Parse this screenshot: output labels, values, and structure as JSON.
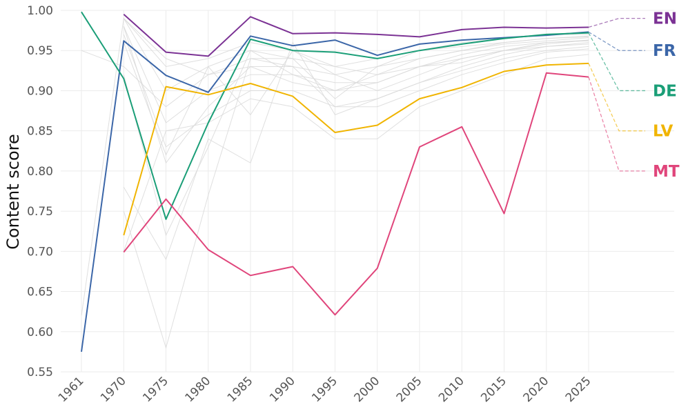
{
  "chart_data": {
    "type": "line",
    "title": "",
    "xlabel": "",
    "ylabel": "Content score",
    "ylim": [
      0.55,
      1.0
    ],
    "yticks": [
      "0.55",
      "0.60",
      "0.65",
      "0.70",
      "0.75",
      "0.80",
      "0.85",
      "0.90",
      "0.95",
      "1.00"
    ],
    "categories": [
      "1961",
      "1970",
      "1975",
      "1980",
      "1985",
      "1990",
      "1995",
      "2000",
      "2005",
      "2010",
      "2015",
      "2020",
      "2025"
    ],
    "grid": true,
    "legend": "right, labels at line ends",
    "series": [
      {
        "name": "EN",
        "color": "#7b3294",
        "label_value": 0.99,
        "values": [
          null,
          0.995,
          0.948,
          0.943,
          0.992,
          0.971,
          0.972,
          0.97,
          0.967,
          0.976,
          0.979,
          0.978,
          0.979
        ]
      },
      {
        "name": "FR",
        "color": "#3b66a8",
        "label_value": 0.95,
        "values": [
          0.575,
          0.962,
          0.919,
          0.898,
          0.968,
          0.956,
          0.963,
          0.944,
          0.958,
          0.963,
          0.966,
          0.969,
          0.973
        ]
      },
      {
        "name": "DE",
        "color": "#1a9e77",
        "label_value": 0.9,
        "values": [
          0.998,
          0.915,
          0.74,
          0.86,
          0.964,
          0.95,
          0.948,
          0.94,
          0.95,
          0.958,
          0.965,
          0.97,
          0.972
        ]
      },
      {
        "name": "LV",
        "color": "#f0b400",
        "label_value": 0.85,
        "values": [
          null,
          0.72,
          0.905,
          0.895,
          0.909,
          0.893,
          0.848,
          0.857,
          0.89,
          0.904,
          0.924,
          0.932,
          0.934
        ]
      },
      {
        "name": "MT",
        "color": "#e0457b",
        "label_value": 0.8,
        "values": [
          null,
          0.699,
          0.765,
          0.702,
          0.67,
          0.681,
          0.621,
          0.679,
          0.83,
          0.855,
          0.747,
          0.922,
          0.917
        ]
      }
    ],
    "background_series": [
      [
        0.95,
        0.93,
        0.88,
        0.92,
        0.94,
        0.93,
        0.92,
        0.93,
        0.94,
        0.95,
        0.96,
        0.965,
        0.968
      ],
      [
        0.62,
        0.99,
        0.9,
        0.93,
        0.95,
        0.94,
        0.93,
        0.94,
        0.95,
        0.96,
        0.965,
        0.97,
        0.97
      ],
      [
        null,
        0.99,
        0.94,
        0.92,
        0.93,
        0.91,
        0.9,
        0.92,
        0.93,
        0.94,
        0.95,
        0.96,
        0.962
      ],
      [
        null,
        0.98,
        0.86,
        0.9,
        0.92,
        0.92,
        0.91,
        0.91,
        0.93,
        0.935,
        0.95,
        0.955,
        0.96
      ],
      [
        null,
        0.97,
        0.83,
        0.87,
        0.9,
        0.9,
        0.88,
        0.89,
        0.91,
        0.93,
        0.945,
        0.955,
        0.958
      ],
      [
        null,
        0.96,
        0.82,
        0.93,
        0.87,
        0.95,
        0.92,
        0.9,
        0.92,
        0.94,
        0.95,
        0.958,
        0.963
      ],
      [
        null,
        0.78,
        0.69,
        0.84,
        0.81,
        0.96,
        0.87,
        0.89,
        0.91,
        0.925,
        0.94,
        0.95,
        0.955
      ],
      [
        null,
        0.75,
        0.58,
        0.77,
        0.94,
        0.94,
        0.89,
        0.93,
        0.95,
        0.955,
        0.96,
        0.965,
        0.967
      ],
      [
        null,
        0.7,
        0.85,
        0.86,
        0.89,
        0.88,
        0.84,
        0.84,
        0.88,
        0.9,
        0.92,
        0.94,
        0.945
      ],
      [
        null,
        0.92,
        0.72,
        0.83,
        0.95,
        0.92,
        0.9,
        0.91,
        0.93,
        0.945,
        0.955,
        0.96,
        0.963
      ],
      [
        null,
        0.98,
        0.81,
        0.88,
        0.93,
        0.93,
        0.88,
        0.88,
        0.9,
        0.92,
        0.935,
        0.948,
        0.952
      ],
      [
        null,
        0.99,
        0.93,
        0.94,
        0.96,
        0.95,
        0.93,
        0.92,
        0.94,
        0.95,
        0.958,
        0.962,
        0.966
      ]
    ]
  }
}
